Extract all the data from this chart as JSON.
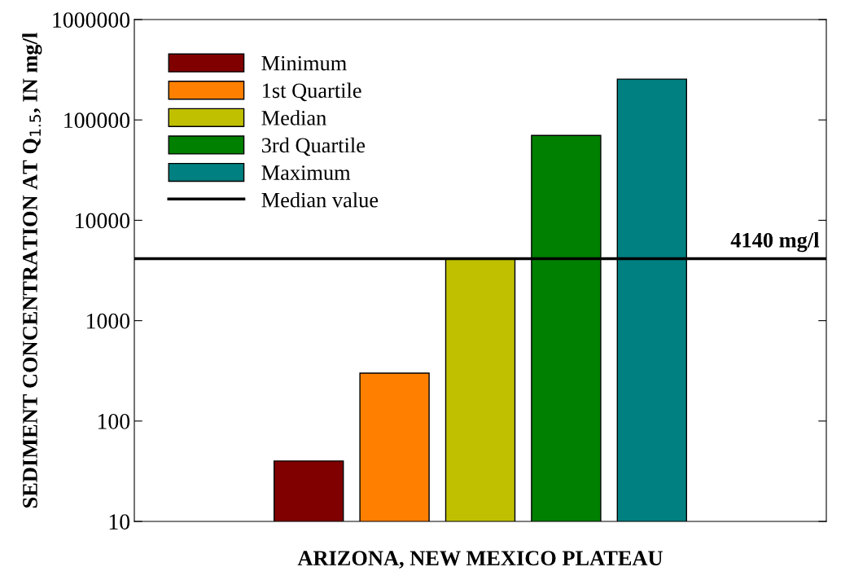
{
  "chart_data": {
    "type": "bar",
    "xlabel": "ARIZONA, NEW MEXICO PLATEAU",
    "ylabel": "SEDIMENT CONCENTRATION AT Q$_{1.5}$, IN mg/l",
    "categories": [
      null
    ],
    "series": [
      {
        "name": "Minimum",
        "color": "#800000",
        "values": [
          40
        ]
      },
      {
        "name": "1st Quartile",
        "color": "#ff8000",
        "values": [
          300
        ]
      },
      {
        "name": "Median",
        "color": "#c0c000",
        "values": [
          4140
        ]
      },
      {
        "name": "3rd Quartile",
        "color": "#008000",
        "values": [
          70000
        ]
      },
      {
        "name": "Maximum",
        "color": "#008080",
        "values": [
          255000
        ]
      }
    ],
    "log": "y",
    "ylim": [
      10,
      1000000
    ],
    "yticks": [
      10,
      100,
      1000,
      10000,
      100000,
      1000000
    ],
    "ref_lines": [
      {
        "axis": "y",
        "value": 4140,
        "label": "Median value",
        "color": "#000000",
        "line_style": "solid"
      }
    ],
    "annotations": [
      {
        "text": "4140 mg/l",
        "y": 4140
      }
    ],
    "legend": "top left",
    "grid": false
  }
}
